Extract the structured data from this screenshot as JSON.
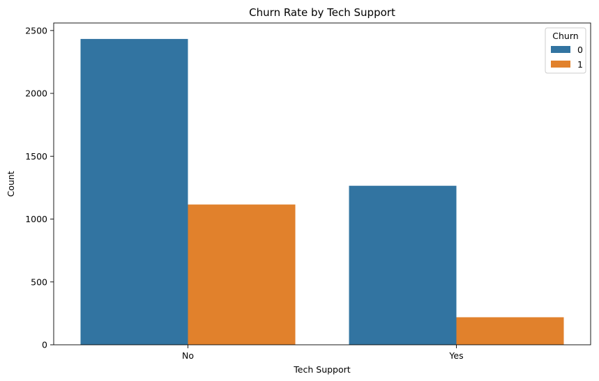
{
  "chart_data": {
    "type": "bar",
    "title": "Churn Rate by Tech Support",
    "xlabel": "Tech Support",
    "ylabel": "Count",
    "categories": [
      "No",
      "Yes"
    ],
    "series": [
      {
        "name": "0",
        "values": [
          2433,
          1265
        ],
        "color": "#3274a1"
      },
      {
        "name": "1",
        "values": [
          1116,
          219
        ],
        "color": "#e1812c"
      }
    ],
    "ylim": [
      0,
      2560
    ],
    "yticks": [
      0,
      500,
      1000,
      1500,
      2000,
      2500
    ],
    "legend": {
      "title": "Churn",
      "placement": "top-right"
    },
    "grid": false
  }
}
